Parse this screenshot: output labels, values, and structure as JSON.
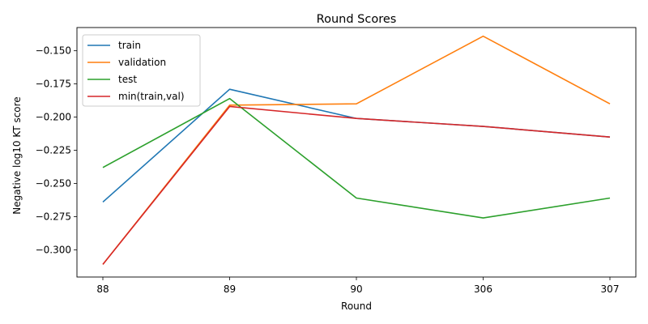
{
  "chart_data": {
    "type": "line",
    "title": "Round Scores",
    "xlabel": "Round",
    "ylabel": "Negative log10 KT score",
    "categories": [
      "88",
      "89",
      "90",
      "306",
      "307"
    ],
    "ylim": [
      -0.3205,
      -0.1325
    ],
    "yticks": [
      -0.15,
      -0.175,
      -0.2,
      -0.225,
      -0.25,
      -0.275,
      -0.3
    ],
    "ytick_labels": [
      "−0.150",
      "−0.175",
      "−0.200",
      "−0.225",
      "−0.250",
      "−0.275",
      "−0.300"
    ],
    "grid": false,
    "legend": "top-left",
    "series": [
      {
        "name": "train",
        "color": "#1f77b4",
        "values": [
          -0.264,
          -0.179,
          -0.201,
          -0.207,
          -0.215
        ]
      },
      {
        "name": "validation",
        "color": "#ff7f0e",
        "values": [
          -0.311,
          -0.191,
          -0.19,
          -0.139,
          -0.19
        ]
      },
      {
        "name": "test",
        "color": "#2ca02c",
        "values": [
          -0.238,
          -0.186,
          -0.261,
          -0.276,
          -0.261
        ]
      },
      {
        "name": "min(train,val)",
        "color": "#d62728",
        "values": [
          -0.311,
          -0.192,
          -0.201,
          -0.207,
          -0.215
        ]
      }
    ]
  }
}
